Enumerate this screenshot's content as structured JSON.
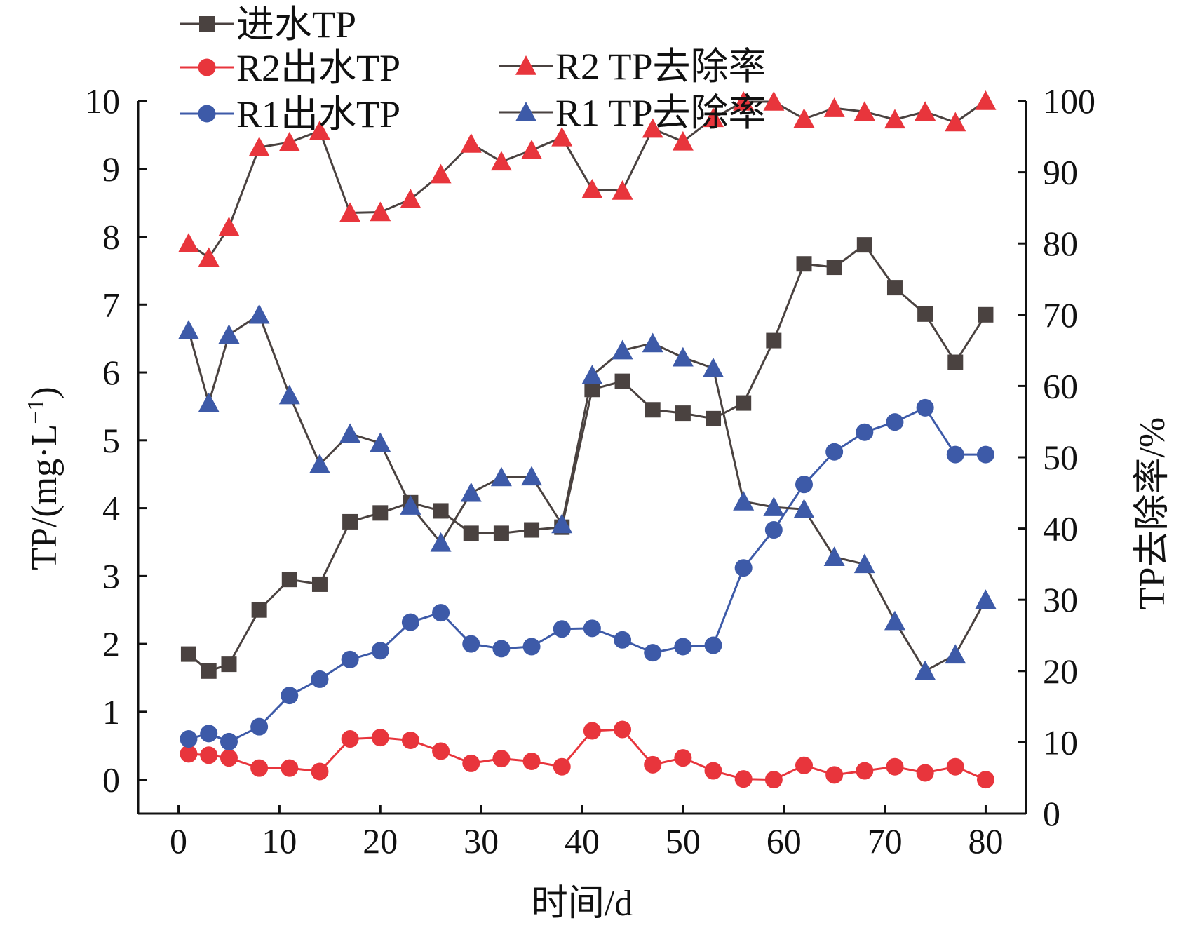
{
  "chart_data": {
    "type": "line",
    "xlabel": "时间/d",
    "ylabel_left": "TP/(mg·L",
    "ylabel_left_sup": "−1",
    "ylabel_left_close": ")",
    "ylabel_right": "TP去除率/%",
    "xlim": [
      -4,
      84
    ],
    "ylim_left": [
      -0.5,
      10
    ],
    "ylim_right": [
      0,
      100
    ],
    "x_ticks": [
      0,
      10,
      20,
      30,
      40,
      50,
      60,
      70,
      80
    ],
    "y_left_ticks": [
      0,
      1,
      2,
      3,
      4,
      5,
      6,
      7,
      8,
      9,
      10
    ],
    "y_right_ticks": [
      0,
      10,
      20,
      30,
      40,
      50,
      60,
      70,
      80,
      90,
      100
    ],
    "x": [
      1,
      3,
      5,
      8,
      11,
      14,
      17,
      20,
      23,
      26,
      29,
      32,
      35,
      38,
      41,
      44,
      47,
      50,
      53,
      56,
      59,
      62,
      65,
      68,
      71,
      74,
      77,
      80
    ],
    "series": [
      {
        "name": "进水TP",
        "axis": "left",
        "marker": "square",
        "color": "#4a4240",
        "values": [
          1.85,
          1.6,
          1.7,
          2.5,
          2.95,
          2.88,
          3.8,
          3.93,
          4.08,
          3.96,
          3.63,
          3.63,
          3.68,
          3.72,
          5.75,
          5.87,
          5.45,
          5.4,
          5.32,
          5.55,
          6.47,
          7.6,
          7.55,
          7.88,
          7.25,
          6.86,
          6.15,
          6.85
        ]
      },
      {
        "name": "R2出水TP",
        "axis": "left",
        "marker": "circle",
        "color": "#e8353c",
        "values": [
          0.38,
          0.36,
          0.32,
          0.17,
          0.17,
          0.12,
          0.6,
          0.62,
          0.58,
          0.42,
          0.24,
          0.31,
          0.27,
          0.19,
          0.72,
          0.74,
          0.22,
          0.32,
          0.13,
          0.01,
          0.0,
          0.21,
          0.07,
          0.13,
          0.19,
          0.1,
          0.19,
          0.0
        ]
      },
      {
        "name": "R1出水TP",
        "axis": "left",
        "marker": "circle",
        "color": "#3d5aa8",
        "values": [
          0.6,
          0.68,
          0.56,
          0.78,
          1.24,
          1.48,
          1.77,
          1.9,
          2.32,
          2.46,
          2.0,
          1.93,
          1.96,
          2.22,
          2.23,
          2.06,
          1.87,
          1.96,
          1.98,
          3.12,
          3.68,
          4.35,
          4.83,
          5.12,
          5.27,
          5.48,
          4.79,
          4.79
        ]
      },
      {
        "name": "R2 TP去除率",
        "axis": "right",
        "marker": "triangle",
        "color": "#e8353c",
        "values": [
          80,
          78,
          82.3,
          93.5,
          94.2,
          95.8,
          84.3,
          84.4,
          86.2,
          89.7,
          94,
          91.5,
          93.1,
          94.9,
          87.6,
          87.4,
          96.1,
          94.3,
          97.6,
          99.9,
          99.9,
          97.5,
          99,
          98.5,
          97.4,
          98.5,
          97,
          100
        ]
      },
      {
        "name": "R1 TP去除率",
        "axis": "right",
        "marker": "triangle",
        "color": "#3d5aa8",
        "values": [
          67.8,
          57.6,
          67.2,
          70,
          58.7,
          49,
          53.3,
          52,
          43.2,
          38,
          45,
          47.2,
          47.3,
          40.6,
          61.5,
          65,
          66,
          64,
          62.5,
          43.8,
          43,
          42.7,
          36,
          35,
          27,
          20,
          22.3,
          30
        ]
      }
    ],
    "legend": {
      "placement": "top",
      "entries": [
        "进水TP",
        "R2出水TP",
        "R1出水TP",
        "R2 TP去除率",
        "R1 TP去除率"
      ]
    },
    "grid": false
  }
}
